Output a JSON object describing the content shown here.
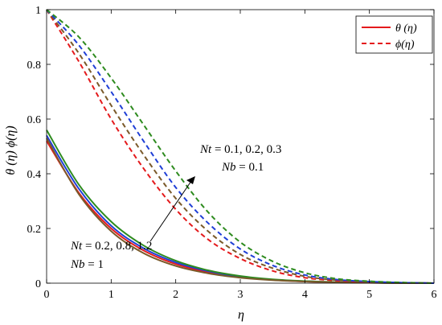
{
  "chart_data": {
    "type": "line",
    "xlabel": "η",
    "ylabel": "θ (η)  ϕ(η)",
    "xlim": [
      0,
      6
    ],
    "ylim": [
      0,
      1
    ],
    "xticks": [
      "0",
      "1",
      "2",
      "3",
      "4",
      "5",
      "6"
    ],
    "yticks": [
      "0",
      "0.2",
      "0.4",
      "0.6",
      "0.8",
      "1"
    ],
    "grid": false,
    "legend_position": "top-right",
    "legend": [
      {
        "label": "θ (η)",
        "style": "solid",
        "color": "#e41a1c"
      },
      {
        "label": "ϕ(η)",
        "style": "dashed",
        "color": "#e41a1c"
      }
    ],
    "x": [
      0,
      0.5,
      1,
      1.5,
      2,
      2.5,
      3,
      3.5,
      4,
      4.5,
      5,
      5.5,
      6
    ],
    "series": [
      {
        "group": "theta",
        "style": "solid",
        "color": "#e41a1c",
        "values": [
          0.52,
          0.33,
          0.2,
          0.12,
          0.07,
          0.04,
          0.022,
          0.012,
          0.006,
          0.003,
          0.0015,
          0.0005,
          0
        ]
      },
      {
        "group": "theta",
        "style": "solid",
        "color": "#1f3fd6",
        "values": [
          0.54,
          0.345,
          0.21,
          0.128,
          0.076,
          0.044,
          0.024,
          0.013,
          0.007,
          0.0035,
          0.0017,
          0.0006,
          0
        ]
      },
      {
        "group": "theta",
        "style": "solid",
        "color": "#2e8b1f",
        "values": [
          0.56,
          0.36,
          0.225,
          0.138,
          0.082,
          0.047,
          0.026,
          0.014,
          0.0075,
          0.0038,
          0.0018,
          0.0007,
          0
        ]
      },
      {
        "group": "theta",
        "style": "solid",
        "color": "#7a5a2a",
        "values": [
          0.53,
          0.325,
          0.19,
          0.11,
          0.063,
          0.036,
          0.02,
          0.011,
          0.006,
          0.003,
          0.0014,
          0.0005,
          0
        ]
      },
      {
        "group": "phi",
        "style": "dashed",
        "color": "#e41a1c",
        "values": [
          1.0,
          0.81,
          0.6,
          0.42,
          0.27,
          0.16,
          0.09,
          0.045,
          0.02,
          0.009,
          0.004,
          0.0015,
          0
        ]
      },
      {
        "group": "phi",
        "style": "dashed",
        "color": "#7a5a2a",
        "values": [
          1.0,
          0.84,
          0.65,
          0.47,
          0.31,
          0.19,
          0.105,
          0.055,
          0.025,
          0.011,
          0.005,
          0.0018,
          0
        ]
      },
      {
        "group": "phi",
        "style": "dashed",
        "color": "#1f3fd6",
        "values": [
          1.0,
          0.87,
          0.7,
          0.52,
          0.35,
          0.22,
          0.125,
          0.065,
          0.03,
          0.013,
          0.006,
          0.002,
          0
        ]
      },
      {
        "group": "phi",
        "style": "dashed",
        "color": "#2e8b1f",
        "values": [
          1.0,
          0.9,
          0.75,
          0.58,
          0.41,
          0.26,
          0.15,
          0.08,
          0.038,
          0.016,
          0.007,
          0.0025,
          0
        ]
      }
    ],
    "annotations": [
      {
        "var1": "Nt",
        "text1": " = 0.1, 0.2, 0.3",
        "var2": "Nb",
        "text2": " = 0.1",
        "target": "ϕ(η) curves"
      },
      {
        "var1": "Nt",
        "text1": " = 0.2, 0.8, 1.2",
        "var2": "Nb",
        "text2": " = 1",
        "target": "θ (η) curves"
      }
    ]
  }
}
